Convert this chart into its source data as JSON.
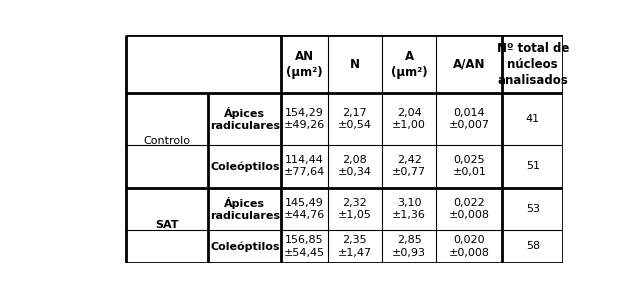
{
  "col_headers": [
    "AN\n(μm²)",
    "N",
    "A\n(μm²)",
    "A/AN",
    "Nº total de\nnúcleos\nanalisados"
  ],
  "sub_labels": [
    "Ápices\nradiculares",
    "Coleóptilos",
    "Ápices\nradiculares",
    "Coleóptilos"
  ],
  "group_labels": [
    "Controlo",
    "SAT"
  ],
  "group_bold": [
    false,
    true
  ],
  "all_rows": [
    [
      "154,29\n±49,26",
      "2,17\n±0,54",
      "2,04\n±1,00",
      "0,014\n±0,007",
      "41"
    ],
    [
      "114,44\n±77,64",
      "2,08\n±0,34",
      "2,42\n±0,77",
      "0,025\n±0,01",
      "51"
    ],
    [
      "145,49\n±44,76",
      "2,32\n±1,05",
      "3,10\n±1,36",
      "0,022\n±0,008",
      "53"
    ],
    [
      "156,85\n±54,45",
      "2,35\n±1,47",
      "2,85\n±0,93",
      "0,020\n±0,008",
      "58"
    ]
  ],
  "background_color": "#ffffff",
  "line_color": "#000000",
  "fontsize": 8.0,
  "header_fontsize": 8.5,
  "lw_thick": 2.0,
  "lw_thin": 0.8,
  "x_borders": [
    62,
    168,
    258,
    322,
    392,
    468,
    626
  ],
  "y_borders": [
    0,
    75,
    142,
    198,
    253,
    295
  ]
}
